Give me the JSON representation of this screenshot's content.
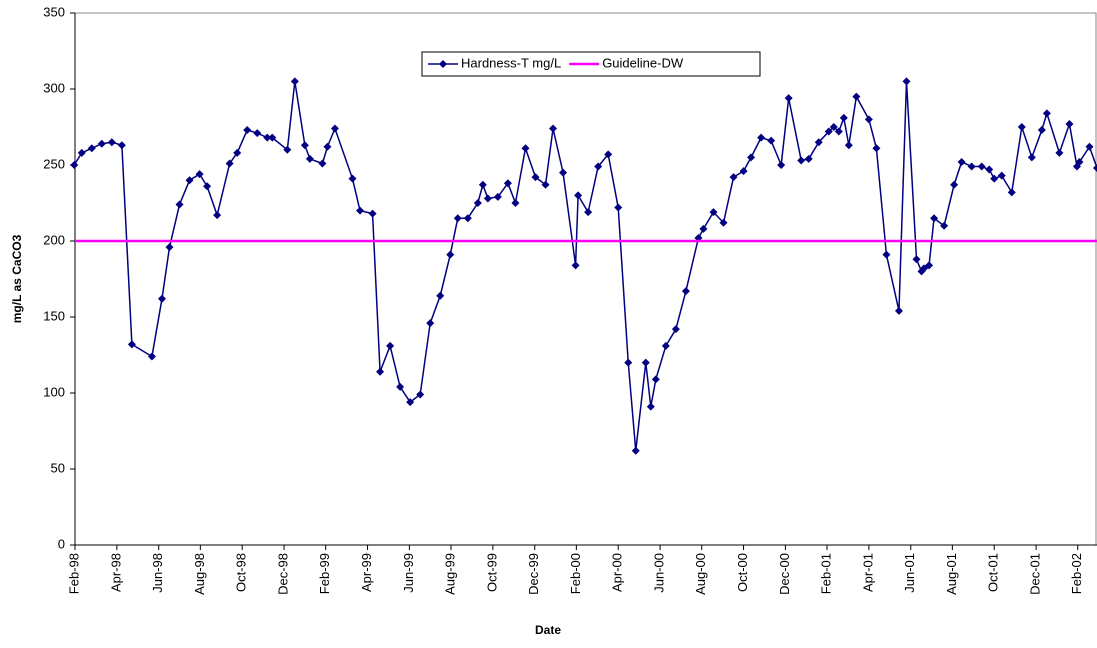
{
  "chart_data": {
    "type": "line",
    "x_label": "Date",
    "y_label": "mg/L as CaCO3",
    "xlim": [
      1998.083,
      2002.16
    ],
    "ylim": [
      0,
      350
    ],
    "yticks": [
      0,
      50,
      100,
      150,
      200,
      250,
      300,
      350
    ],
    "xticks": [
      {
        "value": 1998.083,
        "label": "Feb-98"
      },
      {
        "value": 1998.25,
        "label": "Apr-98"
      },
      {
        "value": 1998.417,
        "label": "Jun-98"
      },
      {
        "value": 1998.583,
        "label": "Aug-98"
      },
      {
        "value": 1998.75,
        "label": "Oct-98"
      },
      {
        "value": 1998.917,
        "label": "Dec-98"
      },
      {
        "value": 1999.083,
        "label": "Feb-99"
      },
      {
        "value": 1999.25,
        "label": "Apr-99"
      },
      {
        "value": 1999.417,
        "label": "Jun-99"
      },
      {
        "value": 1999.583,
        "label": "Aug-99"
      },
      {
        "value": 1999.75,
        "label": "Oct-99"
      },
      {
        "value": 1999.917,
        "label": "Dec-99"
      },
      {
        "value": 2000.083,
        "label": "Feb-00"
      },
      {
        "value": 2000.25,
        "label": "Apr-00"
      },
      {
        "value": 2000.417,
        "label": "Jun-00"
      },
      {
        "value": 2000.583,
        "label": "Aug-00"
      },
      {
        "value": 2000.75,
        "label": "Oct-00"
      },
      {
        "value": 2000.917,
        "label": "Dec-00"
      },
      {
        "value": 2001.083,
        "label": "Feb-01"
      },
      {
        "value": 2001.25,
        "label": "Apr-01"
      },
      {
        "value": 2001.417,
        "label": "Jun-01"
      },
      {
        "value": 2001.583,
        "label": "Aug-01"
      },
      {
        "value": 2001.75,
        "label": "Oct-01"
      },
      {
        "value": 2001.917,
        "label": "Dec-01"
      },
      {
        "value": 2002.083,
        "label": "Feb-02"
      }
    ],
    "legend": "top-center",
    "series": [
      {
        "name": "Hardness-T mg/L",
        "color": "#000080",
        "marker": "diamond",
        "x": [
          1998.08,
          1998.11,
          1998.15,
          1998.19,
          1998.23,
          1998.27,
          1998.31,
          1998.39,
          1998.43,
          1998.46,
          1998.5,
          1998.54,
          1998.58,
          1998.61,
          1998.65,
          1998.7,
          1998.73,
          1998.77,
          1998.81,
          1998.85,
          1998.87,
          1998.93,
          1998.96,
          1999.0,
          1999.02,
          1999.07,
          1999.09,
          1999.12,
          1999.19,
          1999.22,
          1999.27,
          1999.3,
          1999.34,
          1999.38,
          1999.42,
          1999.46,
          1999.5,
          1999.54,
          1999.58,
          1999.61,
          1999.65,
          1999.69,
          1999.71,
          1999.73,
          1999.77,
          1999.81,
          1999.84,
          1999.88,
          1999.92,
          1999.96,
          1999.99,
          2000.03,
          2000.08,
          2000.09,
          2000.13,
          2000.17,
          2000.21,
          2000.25,
          2000.29,
          2000.32,
          2000.36,
          2000.38,
          2000.4,
          2000.44,
          2000.48,
          2000.52,
          2000.57,
          2000.59,
          2000.63,
          2000.67,
          2000.71,
          2000.75,
          2000.78,
          2000.82,
          2000.86,
          2000.9,
          2000.93,
          2000.98,
          2001.01,
          2001.05,
          2001.09,
          2001.11,
          2001.13,
          2001.15,
          2001.17,
          2001.2,
          2001.25,
          2001.28,
          2001.32,
          2001.37,
          2001.4,
          2001.44,
          2001.46,
          2001.47,
          2001.49,
          2001.51,
          2001.55,
          2001.59,
          2001.62,
          2001.66,
          2001.7,
          2001.73,
          2001.75,
          2001.78,
          2001.82,
          2001.86,
          2001.9,
          2001.94,
          2001.96,
          2002.01,
          2002.05,
          2002.08,
          2002.09,
          2002.13,
          2002.16
        ],
        "values": [
          250,
          258,
          261,
          264,
          265,
          263,
          132,
          124,
          162,
          196,
          224,
          240,
          244,
          236,
          217,
          251,
          258,
          273,
          271,
          268,
          268,
          260,
          305,
          263,
          254,
          251,
          262,
          274,
          241,
          220,
          218,
          114,
          131,
          104,
          94,
          99,
          146,
          164,
          191,
          215,
          215,
          225,
          237,
          228,
          229,
          238,
          225,
          261,
          242,
          237,
          274,
          245,
          184,
          230,
          219,
          249,
          257,
          222,
          120,
          62,
          120,
          91,
          109,
          131,
          142,
          167,
          202,
          208,
          219,
          212,
          242,
          246,
          255,
          268,
          266,
          250,
          294,
          253,
          254,
          265,
          272,
          275,
          272,
          281,
          263,
          295,
          280,
          261,
          191,
          154,
          305,
          188,
          180,
          182,
          184,
          215,
          210,
          237,
          252,
          249,
          249,
          247,
          241,
          243,
          232,
          275,
          255,
          273,
          284,
          258,
          277,
          249,
          252,
          262,
          248
        ]
      },
      {
        "name": "Guideline-DW",
        "color": "#ff00ff",
        "marker": "dash",
        "x": [
          1998.083,
          2002.16
        ],
        "values": [
          200,
          200
        ]
      }
    ]
  }
}
